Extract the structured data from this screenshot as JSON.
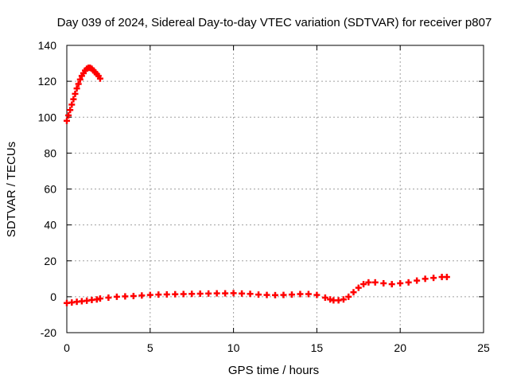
{
  "chart_data": {
    "type": "scatter",
    "title": "Day 039 of 2024, Sidereal Day-to-day VTEC variation (SDTVAR) for receiver p807",
    "xlabel": "GPS time / hours",
    "ylabel": "SDTVAR / TECUs",
    "xlim": [
      0,
      25
    ],
    "ylim": [
      -20,
      140
    ],
    "xticks": [
      0,
      5,
      10,
      15,
      20,
      25
    ],
    "yticks": [
      -20,
      0,
      20,
      40,
      60,
      80,
      100,
      120,
      140
    ],
    "grid": true,
    "series": [
      {
        "name": "SDTVAR",
        "color": "#ff0000",
        "marker": "+",
        "x": [
          0.0,
          0.1,
          0.2,
          0.3,
          0.4,
          0.5,
          0.6,
          0.7,
          0.8,
          0.9,
          1.0,
          1.1,
          1.2,
          1.3,
          1.4,
          1.5,
          1.6,
          1.7,
          1.8,
          1.9,
          2.0,
          0.0,
          0.3,
          0.6,
          0.9,
          1.2,
          1.5,
          1.8,
          2.0,
          2.5,
          3.0,
          3.5,
          4.0,
          4.5,
          5.0,
          5.5,
          6.0,
          6.5,
          7.0,
          7.5,
          8.0,
          8.5,
          9.0,
          9.5,
          10.0,
          10.5,
          11.0,
          11.5,
          12.0,
          12.5,
          13.0,
          13.5,
          14.0,
          14.5,
          15.0,
          15.5,
          15.8,
          16.0,
          16.3,
          16.6,
          16.9,
          17.2,
          17.5,
          17.8,
          18.1,
          18.5,
          19.0,
          19.5,
          20.0,
          20.5,
          21.0,
          21.5,
          22.0,
          22.5,
          22.8
        ],
        "y": [
          98,
          101,
          104,
          107,
          110,
          113,
          116,
          118.5,
          121,
          123,
          124.5,
          126,
          127,
          127.5,
          127.5,
          127,
          126,
          125,
          124,
          123,
          121.5,
          -3.5,
          -3.2,
          -2.8,
          -2.5,
          -2.2,
          -1.8,
          -1.5,
          -1.0,
          -0.5,
          0.0,
          0.2,
          0.4,
          0.7,
          1.0,
          1.2,
          1.3,
          1.4,
          1.5,
          1.6,
          1.7,
          1.8,
          1.9,
          1.9,
          2.0,
          1.8,
          1.6,
          1.2,
          1.0,
          0.9,
          1.0,
          1.2,
          1.5,
          1.5,
          1.0,
          -0.5,
          -1.5,
          -2.0,
          -2.0,
          -1.5,
          0.0,
          2.5,
          5.0,
          7.0,
          8.0,
          8.0,
          7.5,
          7.0,
          7.5,
          8.0,
          9.0,
          10.0,
          10.5,
          11.0,
          11.0
        ]
      }
    ]
  }
}
